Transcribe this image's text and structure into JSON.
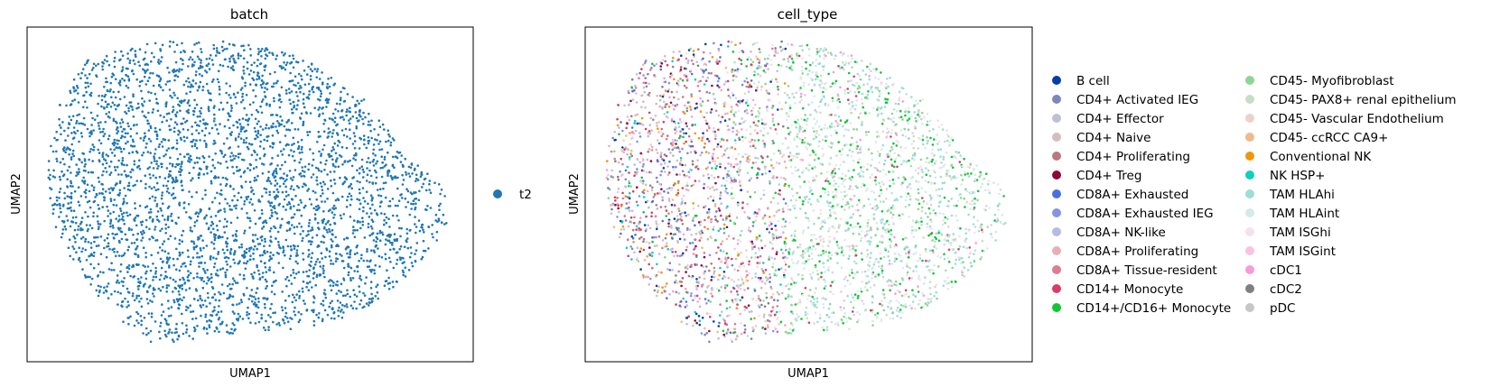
{
  "chart_data": [
    {
      "type": "scatter",
      "title": "batch",
      "xlabel": "UMAP1",
      "ylabel": "UMAP2",
      "ticks": "none",
      "legend": {
        "placement": "right",
        "entries": [
          {
            "label": "t2",
            "color": "#1f77b4"
          }
        ]
      }
    },
    {
      "type": "scatter",
      "title": "cell_type",
      "xlabel": "UMAP1",
      "ylabel": "UMAP2",
      "ticks": "none",
      "legend": {
        "placement": "right",
        "columns": 2,
        "entries": [
          {
            "label": "B cell",
            "color": "#023fa5"
          },
          {
            "label": "CD4+ Activated IEG",
            "color": "#7d87b9"
          },
          {
            "label": "CD4+ Effector",
            "color": "#bec1d4"
          },
          {
            "label": "CD4+ Naive",
            "color": "#d6bcc0"
          },
          {
            "label": "CD4+ Proliferating",
            "color": "#bb7784"
          },
          {
            "label": "CD4+ Treg",
            "color": "#8e063b"
          },
          {
            "label": "CD8A+ Exhausted",
            "color": "#4a6fe3"
          },
          {
            "label": "CD8A+ Exhausted IEG",
            "color": "#8595e1"
          },
          {
            "label": "CD8A+ NK-like",
            "color": "#b5bbe3"
          },
          {
            "label": "CD8A+ Proliferating",
            "color": "#e6afb9"
          },
          {
            "label": "CD8A+ Tissue-resident",
            "color": "#e07b91"
          },
          {
            "label": "CD14+ Monocyte",
            "color": "#d33f6a"
          },
          {
            "label": "CD14+/CD16+ Monocyte",
            "color": "#11c638"
          },
          {
            "label": "CD45- Myofibroblast",
            "color": "#8dd593"
          },
          {
            "label": "CD45- PAX8+ renal epithelium",
            "color": "#c6dec7"
          },
          {
            "label": "CD45- Vascular Endothelium",
            "color": "#ead3c6"
          },
          {
            "label": "CD45- ccRCC CA9+",
            "color": "#f0b98d"
          },
          {
            "label": "Conventional NK",
            "color": "#ef9708"
          },
          {
            "label": "NK HSP+",
            "color": "#0fcfc0"
          },
          {
            "label": "TAM HLAhi",
            "color": "#9cded6"
          },
          {
            "label": "TAM HLAint",
            "color": "#d5eae7"
          },
          {
            "label": "TAM ISGhi",
            "color": "#f3e1eb"
          },
          {
            "label": "TAM ISGint",
            "color": "#f6c4e1"
          },
          {
            "label": "cDC1",
            "color": "#f79cd4"
          },
          {
            "label": "cDC2",
            "color": "#7f7f7f"
          },
          {
            "label": "pDC",
            "color": "#c7c7c7"
          }
        ]
      }
    }
  ]
}
